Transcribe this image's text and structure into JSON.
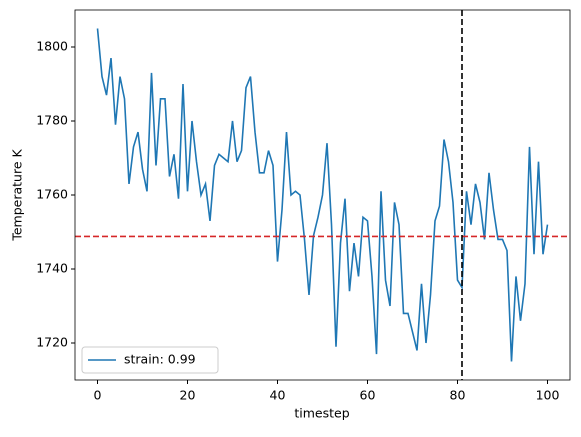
{
  "chart_data": {
    "type": "line",
    "xlabel": "timestep",
    "ylabel": "Temperature K",
    "x": [
      0,
      1,
      2,
      3,
      4,
      5,
      6,
      7,
      8,
      9,
      10,
      11,
      12,
      13,
      14,
      15,
      16,
      17,
      18,
      19,
      20,
      21,
      22,
      23,
      24,
      25,
      26,
      27,
      28,
      29,
      30,
      31,
      32,
      33,
      34,
      35,
      36,
      37,
      38,
      39,
      40,
      41,
      42,
      43,
      44,
      45,
      46,
      47,
      48,
      49,
      50,
      51,
      52,
      53,
      54,
      55,
      56,
      57,
      58,
      59,
      60,
      61,
      62,
      63,
      64,
      65,
      66,
      67,
      68,
      69,
      70,
      71,
      72,
      73,
      74,
      75,
      76,
      77,
      78,
      79,
      80,
      81,
      82,
      83,
      84,
      85,
      86,
      87,
      88,
      89,
      90,
      91,
      92,
      93,
      94,
      95,
      96,
      97,
      98,
      99,
      100
    ],
    "series": [
      {
        "name": "strain: 0.99",
        "color": "#1f77b4",
        "values": [
          1805,
          1792,
          1787,
          1797,
          1779,
          1792,
          1786,
          1763,
          1773,
          1777,
          1767,
          1761,
          1793,
          1768,
          1786,
          1786,
          1765,
          1771,
          1759,
          1790,
          1761,
          1780,
          1769,
          1760,
          1763,
          1753,
          1768,
          1771,
          1770,
          1769,
          1780,
          1769,
          1772,
          1789,
          1792,
          1777,
          1766,
          1766,
          1772,
          1768,
          1742,
          1756,
          1777,
          1760,
          1761,
          1760,
          1748,
          1733,
          1749,
          1754,
          1760,
          1774,
          1752,
          1719,
          1747,
          1759,
          1734,
          1747,
          1738,
          1754,
          1753,
          1738,
          1717,
          1761,
          1737,
          1730,
          1758,
          1752,
          1728,
          1728,
          1723,
          1718,
          1736,
          1720,
          1733,
          1753,
          1757,
          1775,
          1769,
          1758,
          1737,
          1735,
          1761,
          1752,
          1763,
          1758,
          1748,
          1766,
          1756,
          1748,
          1748,
          1745,
          1715,
          1738,
          1726,
          1736,
          1773,
          1744,
          1769,
          1744,
          1752
        ]
      }
    ],
    "reference_lines": [
      {
        "axis": "y",
        "value": 1748.8,
        "color": "#d62728"
      },
      {
        "axis": "x",
        "value": 81,
        "color": "#000000"
      }
    ],
    "xlim": [
      -5,
      105
    ],
    "xticks": [
      0,
      20,
      40,
      60,
      80,
      100
    ],
    "ylim": [
      1710,
      1810
    ],
    "yticks": [
      1720,
      1740,
      1760,
      1780,
      1800
    ],
    "legend": "lower left"
  }
}
